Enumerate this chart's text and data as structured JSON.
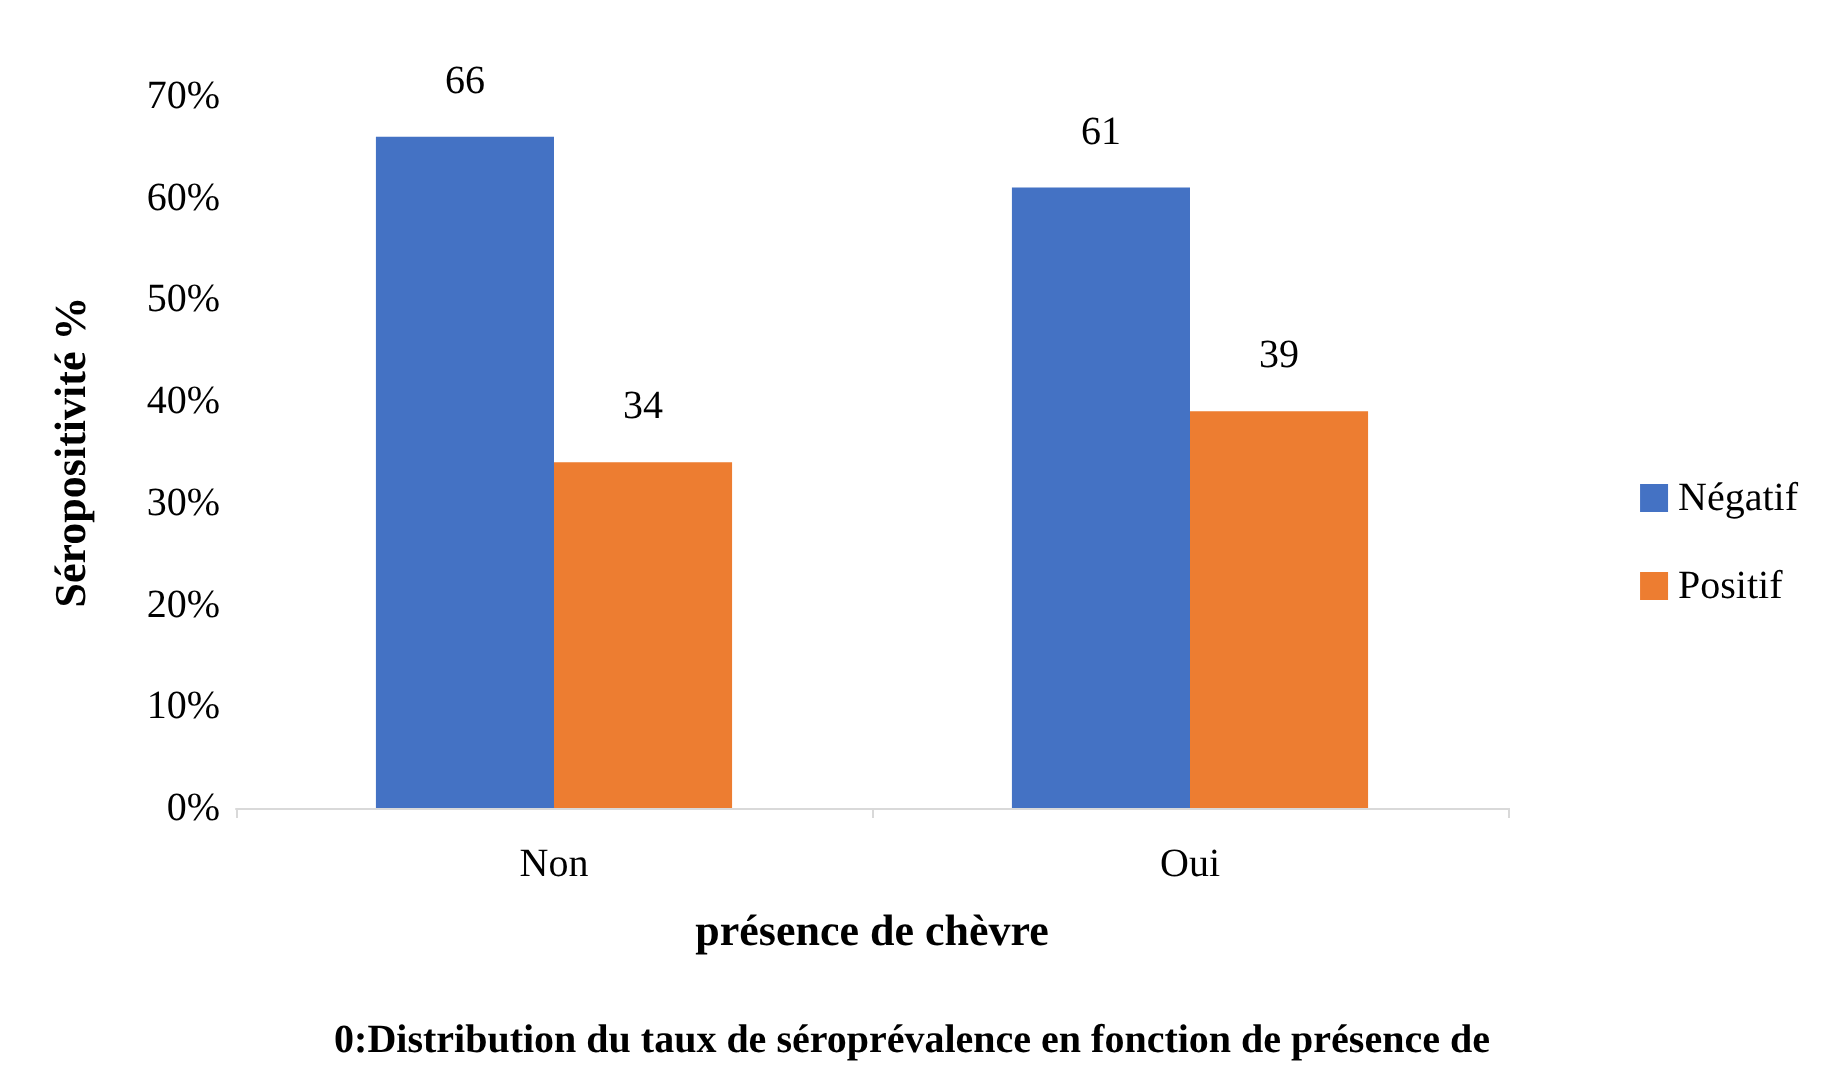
{
  "chart_data": {
    "type": "bar",
    "categories": [
      "Non",
      "Oui"
    ],
    "series": [
      {
        "name": "Négatif",
        "color": "#4472c4",
        "values": [
          66,
          61
        ]
      },
      {
        "name": "Positif",
        "color": "#ed7d31",
        "values": [
          34,
          39
        ]
      }
    ],
    "ylim": [
      0,
      70
    ],
    "yticks": [
      {
        "value": 0,
        "label": "0%"
      },
      {
        "value": 10,
        "label": "10%"
      },
      {
        "value": 20,
        "label": "20%"
      },
      {
        "value": 30,
        "label": "30%"
      },
      {
        "value": 40,
        "label": "40%"
      },
      {
        "value": 50,
        "label": "50%"
      },
      {
        "value": 60,
        "label": "60%"
      },
      {
        "value": 70,
        "label": "70%"
      }
    ],
    "xlabel": "présence de chèvre",
    "ylabel": "Séropositivité %",
    "data_labels": true,
    "legend": "right",
    "grid": false,
    "annotations": [
      "0:Distribution du taux de séroprévalence en fonction de présence de"
    ]
  }
}
